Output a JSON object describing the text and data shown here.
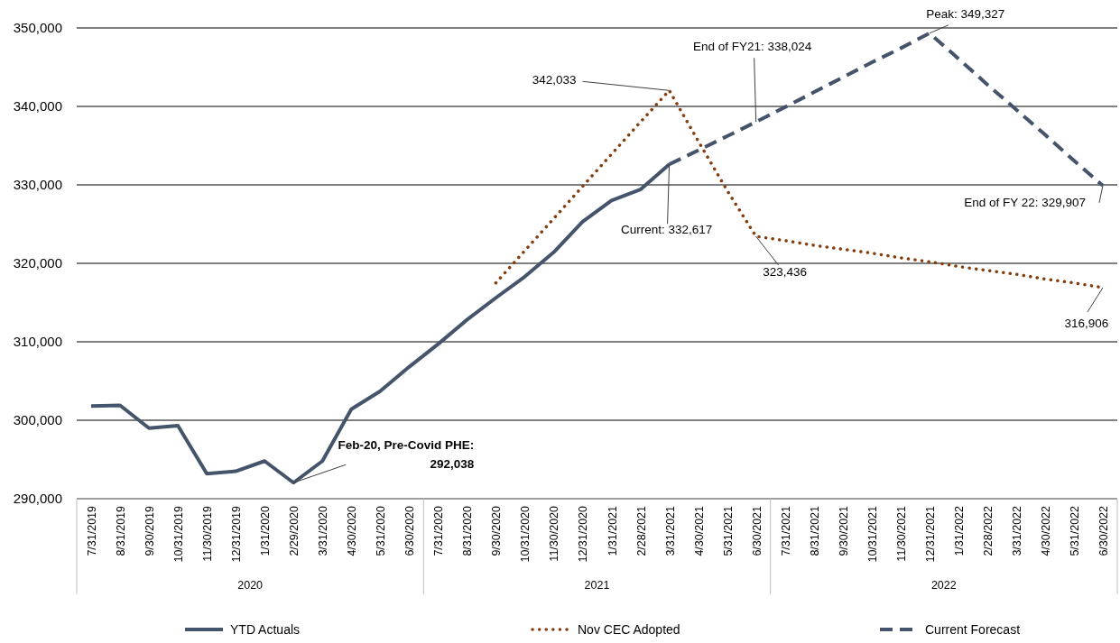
{
  "chart_data": {
    "type": "line",
    "categories": [
      "7/31/2019",
      "8/31/2019",
      "9/30/2019",
      "10/31/2019",
      "11/30/2019",
      "12/31/2019",
      "1/31/2020",
      "2/29/2020",
      "3/31/2020",
      "4/30/2020",
      "5/31/2020",
      "6/30/2020",
      "7/31/2020",
      "8/31/2020",
      "9/30/2020",
      "10/31/2020",
      "11/30/2020",
      "12/31/2020",
      "1/31/2021",
      "2/28/2021",
      "3/31/2021",
      "4/30/2021",
      "5/31/2021",
      "6/30/2021",
      "7/31/2021",
      "8/31/2021",
      "9/30/2021",
      "10/31/2021",
      "11/30/2021",
      "12/31/2021",
      "1/31/2022",
      "2/28/2022",
      "3/31/2022",
      "4/30/2022",
      "5/31/2022",
      "6/30/2022"
    ],
    "series": [
      {
        "name": "YTD Actuals",
        "color": "#44546a",
        "line_style": "solid",
        "values": [
          301800,
          301900,
          299000,
          299300,
          293200,
          293500,
          294800,
          292038,
          294800,
          301400,
          303700,
          306800,
          309700,
          312800,
          315600,
          318300,
          321400,
          325300,
          328000,
          329400,
          332617,
          null,
          null,
          null,
          null,
          null,
          null,
          null,
          null,
          null,
          null,
          null,
          null,
          null,
          null,
          null
        ]
      },
      {
        "name": "Nov CEC Adopted",
        "color": "#843c0c",
        "line_style": "dotted",
        "values": [
          null,
          null,
          null,
          null,
          null,
          null,
          null,
          null,
          null,
          null,
          null,
          null,
          null,
          null,
          317500,
          321600,
          325700,
          329800,
          333900,
          338000,
          342033,
          335600,
          329300,
          323436,
          322900,
          322300,
          321800,
          321300,
          320700,
          320200,
          319600,
          319100,
          318600,
          318000,
          317500,
          316906
        ]
      },
      {
        "name": "Current Forecast",
        "color": "#44546a",
        "line_style": "dashed",
        "values": [
          null,
          null,
          null,
          null,
          null,
          null,
          null,
          null,
          null,
          null,
          null,
          null,
          null,
          null,
          null,
          null,
          null,
          null,
          null,
          null,
          332617,
          334400,
          336200,
          338024,
          339900,
          341800,
          343700,
          345600,
          347400,
          349327,
          346100,
          342800,
          339600,
          336400,
          333100,
          329907
        ]
      }
    ],
    "ylim": [
      290000,
      350000
    ],
    "yticks": [
      {
        "value": 290000,
        "label": "290,000"
      },
      {
        "value": 300000,
        "label": "300,000"
      },
      {
        "value": 310000,
        "label": "310,000"
      },
      {
        "value": 320000,
        "label": "320,000"
      },
      {
        "value": 330000,
        "label": "330,000"
      },
      {
        "value": 340000,
        "label": "340,000"
      },
      {
        "value": 350000,
        "label": "350,000"
      }
    ],
    "grid": "y",
    "legend": "bottom",
    "marker": "none",
    "annotations": [
      {
        "text": "Feb-20, Pre-Covid PHE: 292,038",
        "x": "2/29/2020",
        "y": 292038
      },
      {
        "text": "342,033",
        "x": "3/31/2021",
        "y": 342033
      },
      {
        "text": "Current: 332,617",
        "x": "3/31/2021",
        "y": 332617
      },
      {
        "text": "End of FY21: 338,024",
        "x": "6/30/2021",
        "y": 338024
      },
      {
        "text": "Peak: 349,327",
        "x": "12/31/2021",
        "y": 349327
      },
      {
        "text": "323,436",
        "x": "6/30/2021",
        "y": 323436
      },
      {
        "text": "End of FY 22: 329,907",
        "x": "6/30/2022",
        "y": 329907
      },
      {
        "text": "316,906",
        "x": "6/30/2022",
        "y": 316906
      },
      "2020",
      "2021",
      "2022"
    ]
  }
}
